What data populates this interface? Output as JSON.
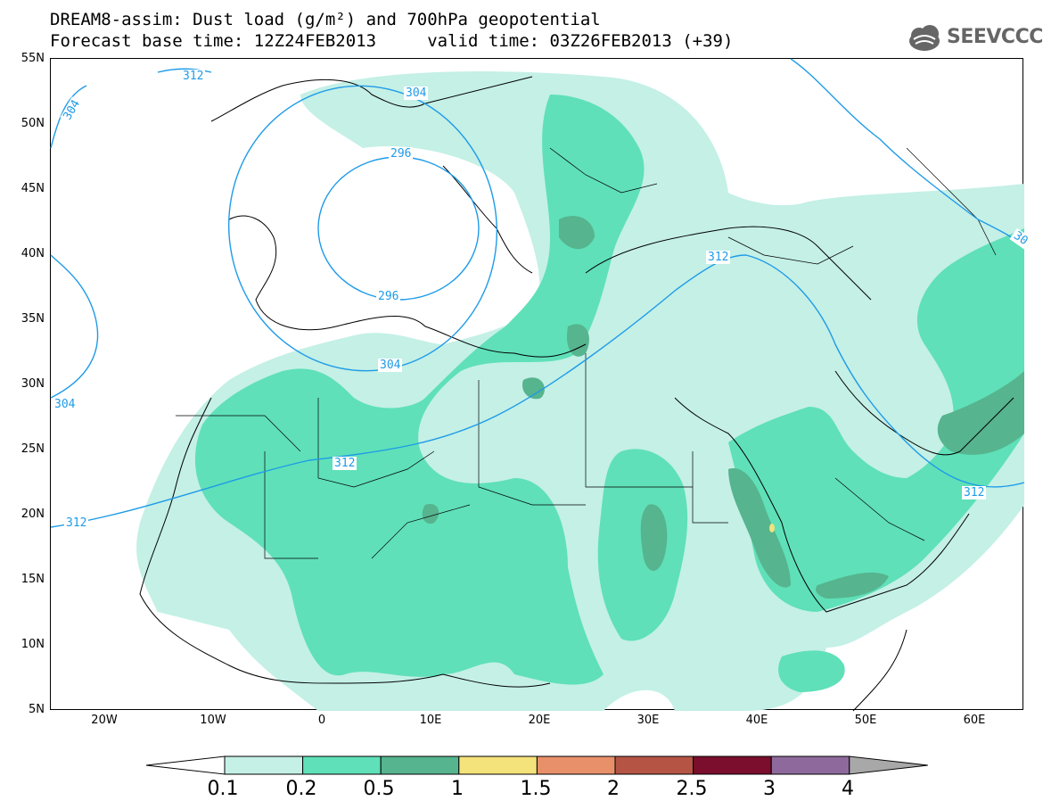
{
  "header": {
    "title_line_1": "DREAM8-assim: Dust load (g/m²) and 700hPa geopotential",
    "title_line_2": "Forecast base time: 12Z24FEB2013     valid time: 03Z26FEB2013 (+39)",
    "logo_text": "SEEVCCC"
  },
  "map": {
    "lat_labels": [
      "55N",
      "50N",
      "45N",
      "40N",
      "35N",
      "30N",
      "25N",
      "20N",
      "15N",
      "10N",
      "5N"
    ],
    "lon_labels": [
      "20W",
      "10W",
      "0",
      "10E",
      "20E",
      "30E",
      "40E",
      "50E",
      "60E"
    ],
    "contour_labels": [
      {
        "text": "312"
      },
      {
        "text": "304"
      },
      {
        "text": "304"
      },
      {
        "text": "296"
      },
      {
        "text": "296"
      },
      {
        "text": "304"
      },
      {
        "text": "304"
      },
      {
        "text": "312"
      },
      {
        "text": "312"
      },
      {
        "text": "312"
      },
      {
        "text": "312"
      },
      {
        "text": "30"
      }
    ],
    "colors": {
      "contour": "#1e9be8",
      "dust_0_1": "#c4f0e6",
      "dust_0_2": "#5fe0b8",
      "dust_0_5": "#56b48e",
      "dust_1": "#f4e27a"
    }
  },
  "legend": {
    "levels": [
      "0.1",
      "0.2",
      "0.5",
      "1",
      "1.5",
      "2",
      "2.5",
      "3",
      "4"
    ],
    "colors": [
      "#c4f0e6",
      "#5fe0b8",
      "#56b48e",
      "#f4e27a",
      "#e8906a",
      "#b55444",
      "#7a0e2c",
      "#8e6a9c"
    ],
    "under_color": "#ffffff",
    "over_color": "#a8a8a8"
  }
}
